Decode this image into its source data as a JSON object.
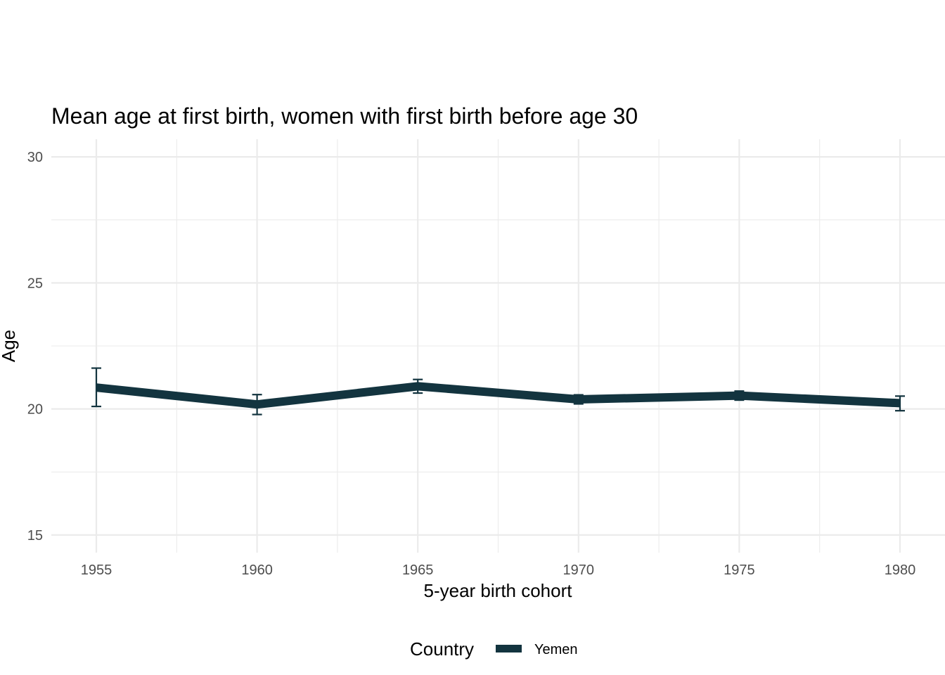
{
  "chart_data": {
    "type": "line",
    "title": "Mean age at first birth, women with first birth before age 30",
    "xlabel": "5-year birth cohort",
    "ylabel": "Age",
    "x": [
      1955,
      1960,
      1965,
      1970,
      1975,
      1980
    ],
    "xticks": [
      "1955",
      "1960",
      "1965",
      "1970",
      "1975",
      "1980"
    ],
    "yticks": [
      "15",
      "20",
      "25",
      "30"
    ],
    "xlim": [
      1953.6,
      1981.4
    ],
    "ylim": [
      14.3,
      30.7
    ],
    "grid": true,
    "legend": {
      "title": "Country",
      "position": "bottom",
      "entries": [
        "Yemen"
      ]
    },
    "series": [
      {
        "name": "Yemen",
        "color": "#13343f",
        "values": [
          20.85,
          20.18,
          20.9,
          20.38,
          20.53,
          20.23
        ],
        "error_low": [
          20.1,
          19.78,
          20.63,
          20.2,
          20.35,
          19.93
        ],
        "error_high": [
          21.62,
          20.57,
          21.17,
          20.56,
          20.71,
          20.51
        ]
      }
    ]
  }
}
